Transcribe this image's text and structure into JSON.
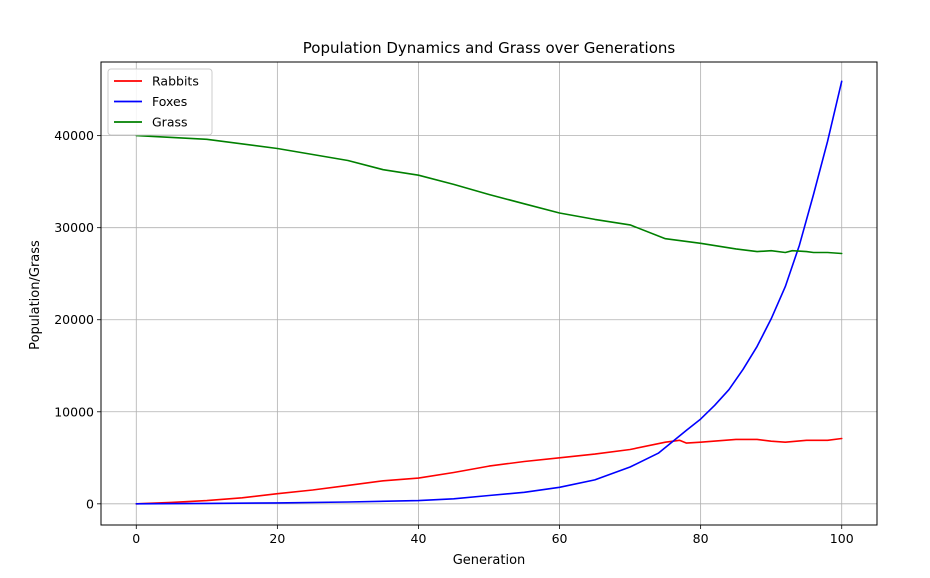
{
  "chart_data": {
    "type": "line",
    "title": "Population Dynamics and Grass over Generations",
    "xlabel": "Generation",
    "ylabel": "Population/Grass",
    "xlim": [
      -5,
      105
    ],
    "ylim": [
      -2300,
      48000
    ],
    "xticks": [
      0,
      20,
      40,
      60,
      80,
      100
    ],
    "yticks": [
      0,
      10000,
      20000,
      30000,
      40000
    ],
    "grid": true,
    "legend_position": "upper-left",
    "series": [
      {
        "name": "Rabbits",
        "color": "#ff0000",
        "x": [
          0,
          5,
          10,
          15,
          20,
          25,
          30,
          35,
          40,
          45,
          50,
          55,
          60,
          65,
          70,
          75,
          77,
          78,
          80,
          85,
          88,
          90,
          92,
          95,
          98,
          100
        ],
        "values": [
          0,
          150,
          350,
          650,
          1100,
          1500,
          2000,
          2500,
          2800,
          3400,
          4100,
          4600,
          5000,
          5400,
          5900,
          6700,
          6900,
          6600,
          6700,
          7000,
          7000,
          6800,
          6700,
          6900,
          6900,
          7100
        ]
      },
      {
        "name": "Foxes",
        "color": "#0000ff",
        "x": [
          0,
          10,
          20,
          30,
          40,
          45,
          50,
          55,
          60,
          65,
          70,
          74,
          78,
          80,
          82,
          84,
          86,
          88,
          90,
          92,
          94,
          96,
          98,
          100
        ],
        "values": [
          0,
          50,
          100,
          200,
          350,
          550,
          900,
          1250,
          1800,
          2600,
          4000,
          5500,
          8000,
          9200,
          10700,
          12400,
          14600,
          17100,
          20100,
          23600,
          28100,
          33600,
          39400,
          45900
        ]
      },
      {
        "name": "Grass",
        "color": "#008000",
        "x": [
          0,
          10,
          20,
          30,
          35,
          40,
          45,
          50,
          55,
          60,
          65,
          70,
          75,
          80,
          85,
          88,
          90,
          92,
          93,
          95,
          96,
          98,
          100
        ],
        "values": [
          40000,
          39600,
          38600,
          37300,
          36300,
          35700,
          34700,
          33600,
          32600,
          31600,
          30900,
          30300,
          28800,
          28300,
          27700,
          27400,
          27500,
          27300,
          27500,
          27400,
          27300,
          27300,
          27200
        ]
      }
    ]
  }
}
